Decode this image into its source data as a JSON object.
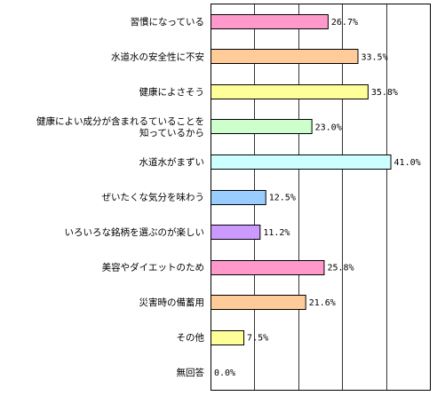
{
  "chart_data": {
    "type": "bar",
    "orientation": "horizontal",
    "title": "",
    "xlabel": "",
    "ylabel": "",
    "xlim": [
      0,
      50
    ],
    "grid": true,
    "value_suffix": "%",
    "categories": [
      [
        "習慣になっている"
      ],
      [
        "水道水の安全性に不安"
      ],
      [
        "健康によさそう"
      ],
      [
        "健康によい成分が含まれるていることを",
        "知っているから"
      ],
      [
        "水道水がまずい"
      ],
      [
        "ぜいたくな気分を味わう"
      ],
      [
        "いろいろな銘柄を選ぶのが楽しい"
      ],
      [
        "美容やダイエットのため"
      ],
      [
        "災害時の備蓄用"
      ],
      [
        "その他"
      ],
      [
        "無回答"
      ]
    ],
    "values": [
      26.7,
      33.5,
      35.8,
      23.0,
      41.0,
      12.5,
      11.2,
      25.8,
      21.6,
      7.5,
      0.0
    ],
    "value_labels": [
      "26.7%",
      "33.5%",
      "35.8%",
      "23.0%",
      "41.0%",
      "12.5%",
      "11.2%",
      "25.8%",
      "21.6%",
      "7.5%",
      "0.0%"
    ],
    "colors": [
      "#ff99cc",
      "#ffcc99",
      "#ffff99",
      "#ccffcc",
      "#ccffff",
      "#99ccff",
      "#cc99ff",
      "#ff99cc",
      "#ffcc99",
      "#ffff99",
      "#ccffcc"
    ]
  }
}
